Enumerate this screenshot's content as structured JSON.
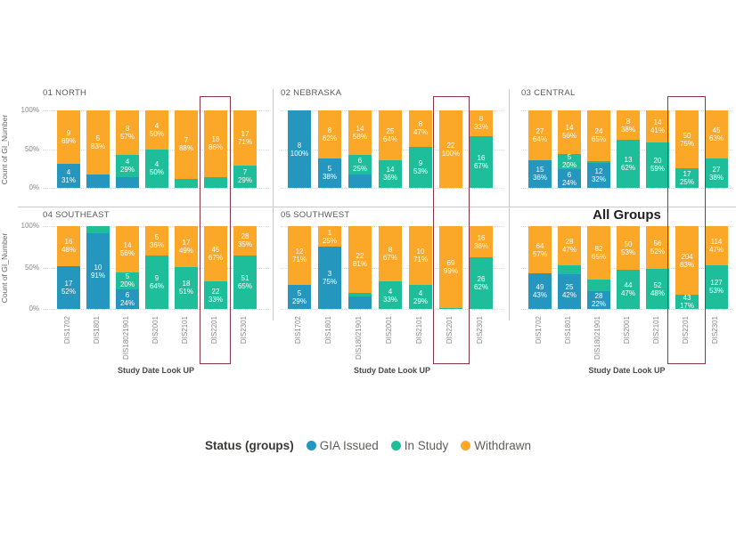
{
  "colors": {
    "gia_issued": "#2596BE",
    "in_study": "#1FBE9A",
    "withdrawn": "#FBA829",
    "highlight_border": "#8B3645"
  },
  "y_axis": {
    "title": "Count of GI_Number",
    "ticks": [
      "100%",
      "50%",
      "0%"
    ]
  },
  "x_axis": {
    "title": "Study Date Look UP",
    "categories": [
      "DIS1702",
      "DIS1801",
      "DIS18021901",
      "DIS2001",
      "DIS2101",
      "DIS2201",
      "DIS2301"
    ]
  },
  "legend": {
    "title": "Status (groups)",
    "items": [
      {
        "label": "GIA Issued",
        "status": "gia_issued"
      },
      {
        "label": "In Study",
        "status": "in_study"
      },
      {
        "label": "Withdrawn",
        "status": "withdrawn"
      }
    ]
  },
  "highlight": {
    "category": "DIS2201"
  },
  "chart_data": {
    "type": "bar",
    "stacked": "percent",
    "categories": [
      "DIS1702",
      "DIS1801",
      "DIS18021901",
      "DIS2001",
      "DIS2101",
      "DIS2201",
      "DIS2301"
    ],
    "note": "segments listed bottom-to-top; count null = unlabeled small segment; pct = % of bar",
    "panels": [
      {
        "title": "01 NORTH",
        "bars": [
          [
            {
              "status": "gia_issued",
              "count": 4,
              "pct": 31
            },
            {
              "status": "withdrawn",
              "count": 9,
              "pct": 69
            }
          ],
          [
            {
              "status": "gia_issued",
              "count": null,
              "pct": 17
            },
            {
              "status": "withdrawn",
              "count": 5,
              "pct": 83
            }
          ],
          [
            {
              "status": "gia_issued",
              "count": null,
              "pct": 14
            },
            {
              "status": "in_study",
              "count": 4,
              "pct": 29
            },
            {
              "status": "withdrawn",
              "count": 8,
              "pct": 57
            }
          ],
          [
            {
              "status": "in_study",
              "count": 4,
              "pct": 50
            },
            {
              "status": "withdrawn",
              "count": 4,
              "pct": 50
            }
          ],
          [
            {
              "status": "in_study",
              "count": null,
              "pct": 12
            },
            {
              "status": "withdrawn",
              "count": 7,
              "pct": 88
            }
          ],
          [
            {
              "status": "in_study",
              "count": null,
              "pct": 14
            },
            {
              "status": "withdrawn",
              "count": 18,
              "pct": 86
            }
          ],
          [
            {
              "status": "in_study",
              "count": 7,
              "pct": 29
            },
            {
              "status": "withdrawn",
              "count": 17,
              "pct": 71
            }
          ]
        ]
      },
      {
        "title": "02 NEBRASKA",
        "bars": [
          [
            {
              "status": "gia_issued",
              "count": 8,
              "pct": 100
            }
          ],
          [
            {
              "status": "gia_issued",
              "count": 5,
              "pct": 38
            },
            {
              "status": "withdrawn",
              "count": 8,
              "pct": 62
            }
          ],
          [
            {
              "status": "gia_issued",
              "count": null,
              "pct": 17
            },
            {
              "status": "in_study",
              "count": 6,
              "pct": 25
            },
            {
              "status": "withdrawn",
              "count": 14,
              "pct": 58
            }
          ],
          [
            {
              "status": "in_study",
              "count": 14,
              "pct": 36
            },
            {
              "status": "withdrawn",
              "count": 25,
              "pct": 64
            }
          ],
          [
            {
              "status": "in_study",
              "count": 9,
              "pct": 53
            },
            {
              "status": "withdrawn",
              "count": 8,
              "pct": 47
            }
          ],
          [
            {
              "status": "withdrawn",
              "count": 22,
              "pct": 100
            }
          ],
          [
            {
              "status": "in_study",
              "count": 16,
              "pct": 67
            },
            {
              "status": "withdrawn",
              "count": 8,
              "pct": 33
            }
          ]
        ]
      },
      {
        "title": "03 CENTRAL",
        "bars": [
          [
            {
              "status": "gia_issued",
              "count": 15,
              "pct": 36
            },
            {
              "status": "withdrawn",
              "count": 27,
              "pct": 64
            }
          ],
          [
            {
              "status": "gia_issued",
              "count": 6,
              "pct": 24
            },
            {
              "status": "in_study",
              "count": 5,
              "pct": 20
            },
            {
              "status": "withdrawn",
              "count": 14,
              "pct": 56
            }
          ],
          [
            {
              "status": "gia_issued",
              "count": 12,
              "pct": 32
            },
            {
              "status": "in_study",
              "count": null,
              "pct": 3
            },
            {
              "status": "withdrawn",
              "count": 24,
              "pct": 65
            }
          ],
          [
            {
              "status": "in_study",
              "count": 13,
              "pct": 62
            },
            {
              "status": "withdrawn",
              "count": 8,
              "pct": 38
            }
          ],
          [
            {
              "status": "in_study",
              "count": 20,
              "pct": 59
            },
            {
              "status": "withdrawn",
              "count": 14,
              "pct": 41
            }
          ],
          [
            {
              "status": "in_study",
              "count": 17,
              "pct": 25
            },
            {
              "status": "withdrawn",
              "count": 50,
              "pct": 75
            }
          ],
          [
            {
              "status": "in_study",
              "count": 27,
              "pct": 38
            },
            {
              "status": "withdrawn",
              "count": 45,
              "pct": 63
            }
          ]
        ]
      },
      {
        "title": "04 SOUTHEAST",
        "bars": [
          [
            {
              "status": "gia_issued",
              "count": 17,
              "pct": 52
            },
            {
              "status": "withdrawn",
              "count": 16,
              "pct": 48
            }
          ],
          [
            {
              "status": "gia_issued",
              "count": 10,
              "pct": 91
            },
            {
              "status": "in_study",
              "count": null,
              "pct": 9
            }
          ],
          [
            {
              "status": "gia_issued",
              "count": 6,
              "pct": 24
            },
            {
              "status": "in_study",
              "count": 5,
              "pct": 20
            },
            {
              "status": "withdrawn",
              "count": 14,
              "pct": 56
            }
          ],
          [
            {
              "status": "in_study",
              "count": 9,
              "pct": 64
            },
            {
              "status": "withdrawn",
              "count": 5,
              "pct": 36
            }
          ],
          [
            {
              "status": "in_study",
              "count": 18,
              "pct": 51
            },
            {
              "status": "withdrawn",
              "count": 17,
              "pct": 49
            }
          ],
          [
            {
              "status": "in_study",
              "count": 22,
              "pct": 33
            },
            {
              "status": "withdrawn",
              "count": 45,
              "pct": 67
            }
          ],
          [
            {
              "status": "in_study",
              "count": 51,
              "pct": 65
            },
            {
              "status": "withdrawn",
              "count": 28,
              "pct": 35
            }
          ]
        ]
      },
      {
        "title": "05 SOUTHWEST",
        "bars": [
          [
            {
              "status": "gia_issued",
              "count": 5,
              "pct": 29
            },
            {
              "status": "withdrawn",
              "count": 12,
              "pct": 71
            }
          ],
          [
            {
              "status": "gia_issued",
              "count": 3,
              "pct": 75
            },
            {
              "status": "withdrawn",
              "count": 1,
              "pct": 25
            }
          ],
          [
            {
              "status": "gia_issued",
              "count": null,
              "pct": 15
            },
            {
              "status": "in_study",
              "count": null,
              "pct": 4
            },
            {
              "status": "withdrawn",
              "count": 22,
              "pct": 81
            }
          ],
          [
            {
              "status": "in_study",
              "count": 4,
              "pct": 33
            },
            {
              "status": "withdrawn",
              "count": 8,
              "pct": 67
            }
          ],
          [
            {
              "status": "in_study",
              "count": 4,
              "pct": 29
            },
            {
              "status": "withdrawn",
              "count": 10,
              "pct": 71
            }
          ],
          [
            {
              "status": "in_study",
              "count": null,
              "pct": 1
            },
            {
              "status": "withdrawn",
              "count": 69,
              "pct": 99
            }
          ],
          [
            {
              "status": "in_study",
              "count": 26,
              "pct": 62
            },
            {
              "status": "withdrawn",
              "count": 16,
              "pct": 38
            }
          ]
        ]
      },
      {
        "title": "All Groups",
        "emphasis": true,
        "bars": [
          [
            {
              "status": "gia_issued",
              "count": 49,
              "pct": 43
            },
            {
              "status": "withdrawn",
              "count": 64,
              "pct": 57
            }
          ],
          [
            {
              "status": "gia_issued",
              "count": 25,
              "pct": 42
            },
            {
              "status": "in_study",
              "count": null,
              "pct": 11
            },
            {
              "status": "withdrawn",
              "count": 28,
              "pct": 47
            }
          ],
          [
            {
              "status": "gia_issued",
              "count": 28,
              "pct": 22
            },
            {
              "status": "in_study",
              "count": null,
              "pct": 13
            },
            {
              "status": "withdrawn",
              "count": 82,
              "pct": 65
            }
          ],
          [
            {
              "status": "in_study",
              "count": 44,
              "pct": 47
            },
            {
              "status": "withdrawn",
              "count": 50,
              "pct": 53
            }
          ],
          [
            {
              "status": "in_study",
              "count": 52,
              "pct": 48
            },
            {
              "status": "withdrawn",
              "count": 56,
              "pct": 52
            }
          ],
          [
            {
              "status": "in_study",
              "count": 43,
              "pct": 17
            },
            {
              "status": "withdrawn",
              "count": 204,
              "pct": 83
            }
          ],
          [
            {
              "status": "in_study",
              "count": 127,
              "pct": 53
            },
            {
              "status": "withdrawn",
              "count": 114,
              "pct": 47
            }
          ]
        ]
      }
    ]
  }
}
